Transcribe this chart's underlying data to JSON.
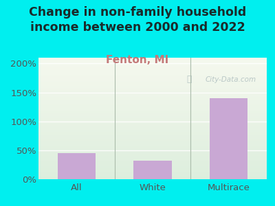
{
  "title": "Change in non-family household\nincome between 2000 and 2022",
  "subtitle": "Fenton, MI",
  "categories": [
    "All",
    "White",
    "Multirace"
  ],
  "values": [
    45,
    32,
    140
  ],
  "bar_color": "#c9a8d4",
  "title_fontsize": 12.5,
  "subtitle_fontsize": 11,
  "subtitle_color": "#c47a7a",
  "ylabel_ticks": [
    0,
    50,
    100,
    150,
    200
  ],
  "ylim": [
    0,
    210
  ],
  "background_outer": "#00efef",
  "background_plot_green": "#ddeedd",
  "background_plot_bottom": "#f0f5e8",
  "watermark": "City-Data.com",
  "tick_label_color": "#555555",
  "title_color": "#1a2a2a",
  "grid_color": "#e0e8e0",
  "separator_color": "#aabbaa"
}
